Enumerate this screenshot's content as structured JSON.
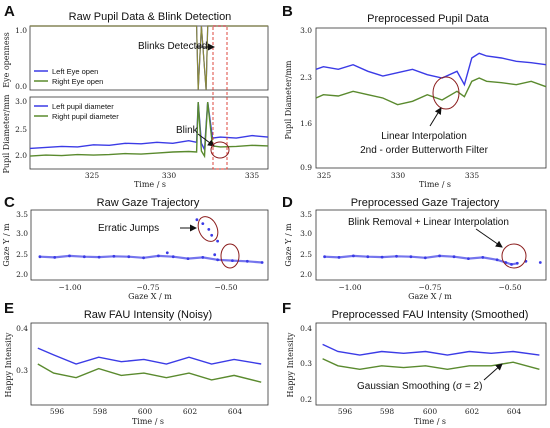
{
  "colors": {
    "blue": "#3b3be6",
    "green": "#5a8a2e",
    "red": "#d9342b",
    "olive": "#8a8a3a",
    "orange": "#d98a2b"
  },
  "panels": {
    "A": {
      "letter": "A",
      "title": "Raw Pupil Data & Blink Detection",
      "upper_ylabel": "Eye openness",
      "upper_yticks": [
        "0.0",
        "1.0"
      ],
      "legend_upper": [
        "Left Eye open",
        "Right Eye open"
      ],
      "annot_upper": "Blinks Detected",
      "lower_ylabel": "Pupil Diameter/mm",
      "lower_yticks": [
        "2.0",
        "2.5",
        "3.0"
      ],
      "legend_lower": [
        "Left pupil diameter",
        "Right pupil diameter"
      ],
      "annot_lower": "Blink",
      "xticks": [
        "325",
        "330",
        "335"
      ],
      "xlabel": "Time / s"
    },
    "B": {
      "letter": "B",
      "title": "Preprocessed Pupil Data",
      "ylabel": "Pupil Diameter/mm",
      "yticks": [
        "0.9",
        "1.6",
        "2.3",
        "3.0"
      ],
      "xticks": [
        "325",
        "330",
        "335"
      ],
      "xlabel": "Time / s",
      "annot_line1": "Linear Interpolation",
      "annot_line2": "2nd - order Butterworth Filter"
    },
    "C": {
      "letter": "C",
      "title": "Raw Gaze Trajectory",
      "ylabel": "Gaze Y / m",
      "yticks": [
        "2.0",
        "2.5",
        "3.0",
        "3.5"
      ],
      "xticks": [
        "−1.00",
        "−0.75",
        "−0.50"
      ],
      "xlabel": "Gaze X / m",
      "annot": "Erratic Jumps"
    },
    "D": {
      "letter": "D",
      "title": "Preprocessed Gaze Trajectory",
      "ylabel": "Gaze Y / m",
      "yticks": [
        "2.0",
        "2.5",
        "3.0",
        "3.5"
      ],
      "xticks": [
        "−1.00",
        "−0.75",
        "−0.50"
      ],
      "xlabel": "Gaze X / m",
      "annot": "Blink Removal + Linear Interpolation"
    },
    "E": {
      "letter": "E",
      "title": "Raw FAU Intensity (Noisy)",
      "ylabel": "Happy Intensity",
      "yticks": [
        "0.3",
        "0.4"
      ],
      "xticks": [
        "596",
        "598",
        "600",
        "602",
        "604"
      ],
      "xlabel": "Time / s"
    },
    "F": {
      "letter": "F",
      "title": "Preprocessed FAU Intensity (Smoothed)",
      "ylabel": "Happy Intensity",
      "yticks": [
        "0.2",
        "0.3",
        "0.4"
      ],
      "xticks": [
        "596",
        "598",
        "600",
        "602",
        "604"
      ],
      "xlabel": "Time / s",
      "annot": "Gaussian Smoothing (σ = 2)"
    }
  },
  "chart_data": [
    {
      "panel": "A-upper",
      "type": "line",
      "title": "Raw Pupil Data & Blink Detection",
      "ylabel": "Eye openness",
      "xlim": [
        321,
        336
      ],
      "ylim": [
        0,
        1
      ],
      "series": [
        {
          "name": "Left Eye open",
          "x": [
            321,
            331.5,
            331.6,
            331.8,
            332.1,
            332.2,
            336
          ],
          "y": [
            1,
            1,
            0,
            1,
            0,
            1,
            1
          ]
        },
        {
          "name": "Right Eye open",
          "x": [
            321,
            331.5,
            331.6,
            331.8,
            332.1,
            332.2,
            336
          ],
          "y": [
            1,
            1,
            0,
            1,
            0,
            1,
            1
          ]
        }
      ]
    },
    {
      "panel": "A-lower",
      "type": "line",
      "xlabel": "Time / s",
      "ylabel": "Pupil Diameter/mm",
      "xlim": [
        321,
        336
      ],
      "ylim": [
        2.0,
        3.4
      ],
      "series": [
        {
          "name": "Left pupil diameter",
          "x": [
            321,
            322,
            323,
            324,
            325,
            326,
            327,
            328,
            329,
            330,
            331,
            331.5,
            331.6,
            331.8,
            332,
            332.2,
            332.5,
            333,
            334,
            335,
            336
          ],
          "y": [
            2.4,
            2.42,
            2.44,
            2.43,
            2.47,
            2.46,
            2.5,
            2.49,
            2.52,
            2.5,
            2.55,
            2.52,
            3.3,
            2.5,
            2.38,
            3.3,
            2.6,
            2.62,
            2.6,
            2.65,
            2.62
          ]
        },
        {
          "name": "Right pupil diameter",
          "x": [
            321,
            322,
            323,
            324,
            325,
            326,
            327,
            328,
            329,
            330,
            331,
            331.5,
            331.6,
            331.8,
            332,
            332.2,
            332.5,
            333,
            334,
            335,
            336
          ],
          "y": [
            2.25,
            2.27,
            2.26,
            2.28,
            2.27,
            2.28,
            2.3,
            2.29,
            2.31,
            2.33,
            2.34,
            2.33,
            3.3,
            2.35,
            2.25,
            3.3,
            2.45,
            2.43,
            2.44,
            2.46,
            2.45
          ]
        }
      ]
    },
    {
      "panel": "B",
      "type": "line",
      "title": "Preprocessed Pupil Data",
      "xlabel": "Time / s",
      "ylabel": "Pupil Diameter/mm",
      "xlim": [
        324.5,
        340
      ],
      "ylim": [
        0.9,
        3.0
      ],
      "series": [
        {
          "x": [
            324.5,
            325,
            326,
            327,
            328,
            329,
            330,
            331,
            332,
            333,
            334,
            334.5,
            335,
            335.5,
            336,
            337,
            338,
            339,
            340
          ],
          "y": [
            2.38,
            2.42,
            2.38,
            2.45,
            2.35,
            2.28,
            2.33,
            2.38,
            2.3,
            2.25,
            2.35,
            2.15,
            2.55,
            2.62,
            2.58,
            2.55,
            2.5,
            2.48,
            2.45
          ]
        },
        {
          "x": [
            324.5,
            325,
            326,
            327,
            328,
            329,
            330,
            331,
            332,
            333,
            334,
            334.5,
            335,
            335.5,
            336,
            337,
            338,
            339,
            340
          ],
          "y": [
            1.95,
            2.0,
            1.98,
            2.05,
            2.0,
            1.95,
            1.85,
            1.9,
            2.0,
            1.92,
            2.05,
            1.97,
            2.2,
            2.25,
            2.2,
            2.18,
            2.15,
            2.2,
            2.12
          ]
        }
      ]
    },
    {
      "panel": "C",
      "type": "scatter",
      "title": "Raw Gaze Trajectory",
      "xlabel": "Gaze X / m",
      "ylabel": "Gaze Y / m",
      "xlim": [
        -1.18,
        -0.38
      ],
      "ylim": [
        1.9,
        3.7
      ],
      "series": [
        {
          "x": [
            -1.15,
            -1.1,
            -1.05,
            -1.0,
            -0.95,
            -0.9,
            -0.85,
            -0.8,
            -0.75,
            -0.7,
            -0.65,
            -0.6,
            -0.55,
            -0.5,
            -0.45,
            -0.4,
            -0.62,
            -0.6,
            -0.58,
            -0.57,
            -0.55,
            -0.56,
            -0.72
          ],
          "y": [
            2.5,
            2.48,
            2.52,
            2.5,
            2.49,
            2.51,
            2.5,
            2.47,
            2.52,
            2.5,
            2.45,
            2.48,
            2.42,
            2.4,
            2.38,
            2.35,
            3.45,
            3.35,
            3.2,
            3.05,
            2.9,
            2.55,
            2.6
          ]
        }
      ]
    },
    {
      "panel": "D",
      "type": "scatter",
      "title": "Preprocessed Gaze Trajectory",
      "xlabel": "Gaze X / m",
      "ylabel": "Gaze Y / m",
      "xlim": [
        -1.18,
        -0.38
      ],
      "ylim": [
        1.9,
        3.7
      ],
      "series": [
        {
          "x": [
            -1.15,
            -1.1,
            -1.05,
            -1.0,
            -0.95,
            -0.9,
            -0.85,
            -0.8,
            -0.75,
            -0.7,
            -0.65,
            -0.6,
            -0.55,
            -0.52,
            -0.5,
            -0.48,
            -0.45,
            -0.4
          ],
          "y": [
            2.5,
            2.48,
            2.52,
            2.5,
            2.49,
            2.51,
            2.5,
            2.47,
            2.52,
            2.5,
            2.45,
            2.48,
            2.42,
            2.35,
            2.3,
            2.33,
            2.38,
            2.35
          ]
        }
      ]
    },
    {
      "panel": "E",
      "type": "line",
      "title": "Raw FAU Intensity (Noisy)",
      "xlabel": "Time / s",
      "ylabel": "Happy Intensity",
      "xlim": [
        595,
        605.5
      ],
      "ylim": [
        0.25,
        0.43
      ],
      "series": [
        {
          "x": [
            595.3,
            596,
            597,
            598,
            599,
            600,
            601,
            602,
            603,
            604,
            605.2
          ],
          "y": [
            0.375,
            0.36,
            0.34,
            0.355,
            0.345,
            0.35,
            0.34,
            0.355,
            0.34,
            0.35,
            0.34
          ]
        },
        {
          "x": [
            595.3,
            596,
            597,
            598,
            599,
            600,
            601,
            602,
            603,
            604,
            605.2
          ],
          "y": [
            0.34,
            0.32,
            0.31,
            0.33,
            0.315,
            0.32,
            0.31,
            0.32,
            0.305,
            0.315,
            0.3
          ]
        }
      ]
    },
    {
      "panel": "F",
      "type": "line",
      "title": "Preprocessed FAU Intensity (Smoothed)",
      "xlabel": "Time / s",
      "ylabel": "Happy Intensity",
      "xlim": [
        595,
        605.5
      ],
      "ylim": [
        0.2,
        0.43
      ],
      "series": [
        {
          "x": [
            595.3,
            596,
            597,
            598,
            599,
            600,
            601,
            602,
            603,
            604,
            605.2
          ],
          "y": [
            0.37,
            0.35,
            0.34,
            0.35,
            0.345,
            0.35,
            0.34,
            0.35,
            0.345,
            0.35,
            0.34
          ]
        },
        {
          "x": [
            595.3,
            596,
            597,
            598,
            599,
            600,
            601,
            602,
            603,
            604,
            605.2
          ],
          "y": [
            0.33,
            0.31,
            0.3,
            0.31,
            0.305,
            0.31,
            0.3,
            0.31,
            0.31,
            0.32,
            0.3
          ]
        }
      ]
    }
  ]
}
